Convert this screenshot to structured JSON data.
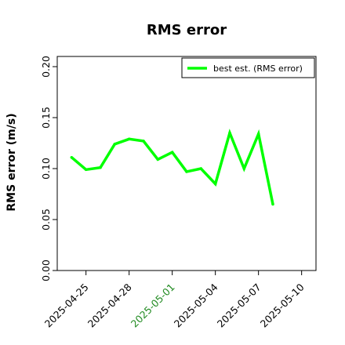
{
  "chart_data": {
    "type": "line",
    "title": "RMS error",
    "xlabel": "",
    "ylabel": "RMS error (m/s)",
    "x": [
      "2025-04-24",
      "2025-04-25",
      "2025-04-26",
      "2025-04-27",
      "2025-04-28",
      "2025-04-29",
      "2025-04-30",
      "2025-05-01",
      "2025-05-02",
      "2025-05-03",
      "2025-05-04",
      "2025-05-05",
      "2025-05-06",
      "2025-05-07",
      "2025-05-08"
    ],
    "series": [
      {
        "name": "best est. (RMS error)",
        "color": "#00ff00",
        "values": [
          0.111,
          0.099,
          0.101,
          0.124,
          0.129,
          0.127,
          0.109,
          0.116,
          0.097,
          0.1,
          0.085,
          0.135,
          0.1,
          0.134,
          0.065
        ]
      }
    ],
    "ylim": [
      0.0,
      0.21
    ],
    "xlim": [
      "2025-04-23",
      "2025-05-11"
    ],
    "yticks": [
      0.0,
      0.05,
      0.1,
      0.15,
      0.2
    ],
    "ytick_labels": [
      "0.00",
      "0.05",
      "0.10",
      "0.15",
      "0.20"
    ],
    "xticks": [
      "2025-04-25",
      "2025-04-28",
      "2025-05-01",
      "2025-05-04",
      "2025-05-07",
      "2025-05-10"
    ],
    "xtick_labels": [
      "2025-04-25",
      "2025-04-28",
      "2025-05-01",
      "2025-05-04",
      "2025-05-07",
      "2025-05-10"
    ],
    "xtick_label_colors": [
      "#000000",
      "#000000",
      "#228b22",
      "#000000",
      "#000000",
      "#000000"
    ],
    "grid": false,
    "legend_position": "top-right"
  }
}
